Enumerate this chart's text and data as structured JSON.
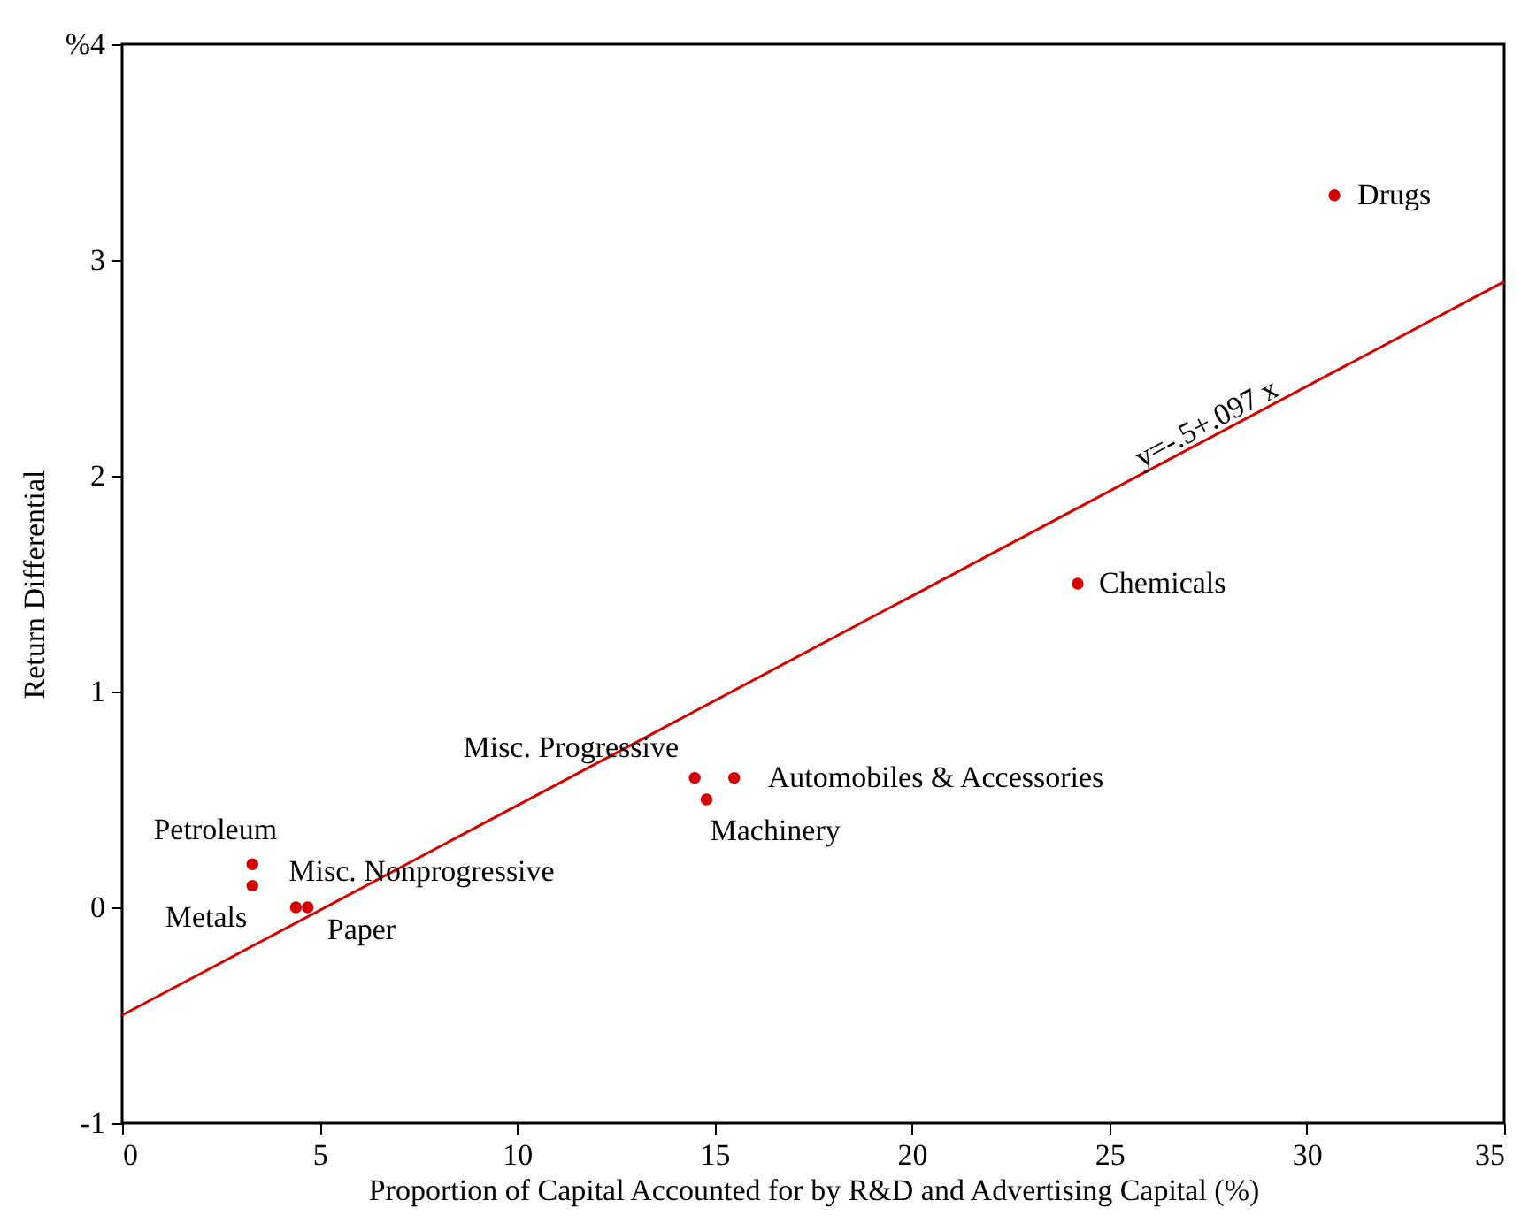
{
  "chart_data": {
    "type": "scatter",
    "xlabel": "Proportion of Capital Accounted for by R&D and Advertising Capital (%)",
    "ylabel": "Return Differential",
    "xlim": [
      0,
      35
    ],
    "ylim": [
      -1,
      4
    ],
    "xticks": [
      0,
      5,
      10,
      15,
      20,
      25,
      30,
      35
    ],
    "yticks": [
      -1,
      0,
      1,
      2,
      3,
      {
        "value": 4,
        "label": "%4"
      }
    ],
    "grid": false,
    "marker": "circle",
    "series": [
      {
        "color": "#d40000",
        "x": [
          30.7,
          24.2,
          14.5,
          15.5,
          14.8,
          3.3,
          3.3,
          4.4,
          4.7
        ],
        "values": [
          3.3,
          1.5,
          0.6,
          0.6,
          0.5,
          0.2,
          0.1,
          0,
          0
        ]
      },
      {
        "type": "line",
        "color": "#d40000",
        "line_style": "solid",
        "marker": "none",
        "x": [
          0,
          35
        ],
        "values": [
          -0.5,
          2.9
        ]
      }
    ],
    "annotations": [
      {
        "text": "Drugs",
        "x": 30.7,
        "y": 3.3
      },
      {
        "text": "Chemicals",
        "x": 24.2,
        "y": 1.5
      },
      {
        "text": "Misc. Progressive",
        "x": 14.5,
        "y": 0.6
      },
      {
        "text": "Automobiles & Accessories",
        "x": 15.5,
        "y": 0.6
      },
      {
        "text": "Machinery",
        "x": 14.8,
        "y": 0.5
      },
      {
        "text": "Petroleum",
        "x": 3.3,
        "y": 0.2
      },
      {
        "text": "Metals",
        "x": 3.3,
        "y": 0.1
      },
      {
        "text": "Misc. Nonprogressive",
        "x": 4.4,
        "y": 0
      },
      {
        "text": "Paper",
        "x": 4.7,
        "y": 0
      },
      {
        "text": "y=-.5+.097 x",
        "x": 27.8,
        "y": 2.2
      }
    ]
  }
}
